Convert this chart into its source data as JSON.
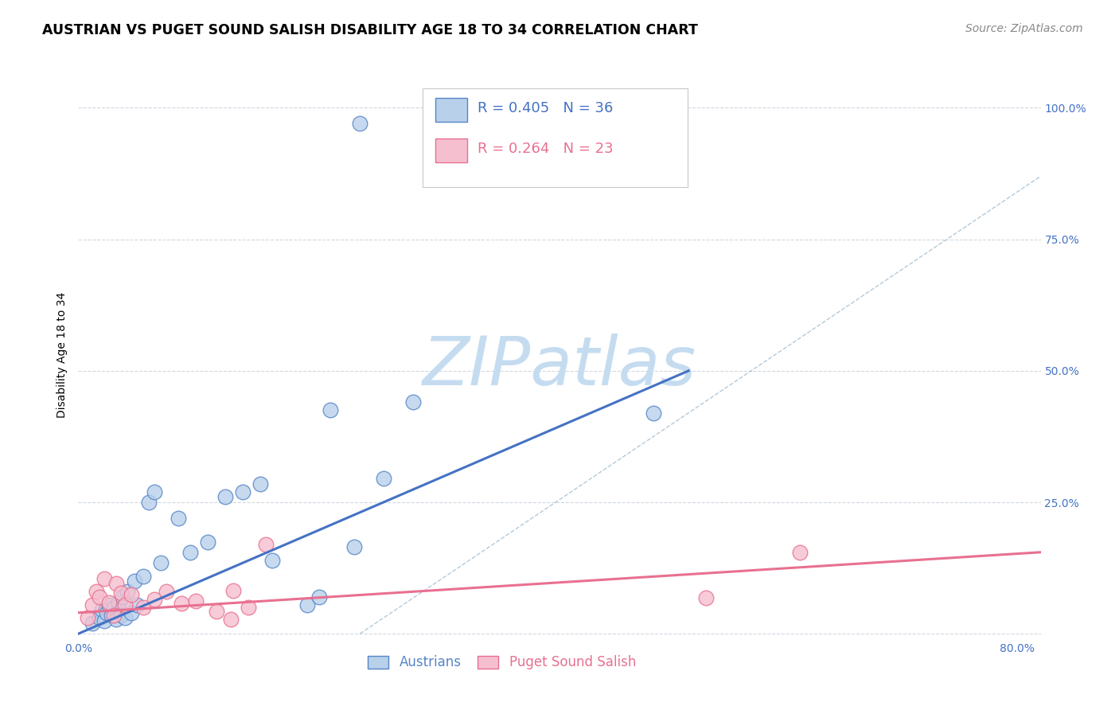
{
  "title": "AUSTRIAN VS PUGET SOUND SALISH DISABILITY AGE 18 TO 34 CORRELATION CHART",
  "source": "Source: ZipAtlas.com",
  "ylabel": "Disability Age 18 to 34",
  "xlim": [
    0.0,
    0.82
  ],
  "ylim": [
    -0.01,
    1.07
  ],
  "xticks": [
    0.0,
    0.2,
    0.4,
    0.6,
    0.8
  ],
  "xticklabels": [
    "0.0%",
    "",
    "",
    "",
    "80.0%"
  ],
  "yticks": [
    0.0,
    0.25,
    0.5,
    0.75,
    1.0
  ],
  "right_yticklabels": [
    "",
    "25.0%",
    "50.0%",
    "75.0%",
    "100.0%"
  ],
  "blue_R": 0.405,
  "blue_N": 36,
  "pink_R": 0.264,
  "pink_N": 23,
  "blue_face_color": "#b8d0ea",
  "blue_edge_color": "#5585c8",
  "pink_face_color": "#f5bfcf",
  "pink_edge_color": "#e87090",
  "blue_line_color": "#4472c4",
  "pink_line_color": "#e87090",
  "dashed_line_color": "#a0bcd0",
  "watermark": "ZIPatlas",
  "watermark_color": "#c5dcf0",
  "grid_color": "#d0d8e0",
  "tick_color": "#4472c4",
  "background": "#ffffff",
  "blue_points_x": [
    0.012,
    0.018,
    0.02,
    0.022,
    0.024,
    0.026,
    0.028,
    0.03,
    0.032,
    0.034,
    0.036,
    0.038,
    0.04,
    0.042,
    0.045,
    0.048,
    0.05,
    0.055,
    0.06,
    0.065,
    0.07,
    0.085,
    0.095,
    0.11,
    0.125,
    0.14,
    0.155,
    0.165,
    0.195,
    0.205,
    0.215,
    0.235,
    0.26,
    0.285,
    0.49,
    0.24
  ],
  "blue_points_y": [
    0.02,
    0.03,
    0.045,
    0.025,
    0.04,
    0.055,
    0.035,
    0.05,
    0.028,
    0.06,
    0.035,
    0.07,
    0.03,
    0.08,
    0.04,
    0.1,
    0.055,
    0.11,
    0.25,
    0.27,
    0.135,
    0.22,
    0.155,
    0.175,
    0.26,
    0.27,
    0.285,
    0.14,
    0.055,
    0.07,
    0.425,
    0.165,
    0.295,
    0.44,
    0.42,
    0.97
  ],
  "pink_points_x": [
    0.008,
    0.012,
    0.015,
    0.018,
    0.022,
    0.026,
    0.03,
    0.032,
    0.036,
    0.04,
    0.045,
    0.055,
    0.065,
    0.075,
    0.088,
    0.1,
    0.118,
    0.132,
    0.145,
    0.16,
    0.535,
    0.615,
    0.13
  ],
  "pink_points_y": [
    0.03,
    0.055,
    0.08,
    0.07,
    0.105,
    0.06,
    0.035,
    0.095,
    0.078,
    0.055,
    0.075,
    0.05,
    0.065,
    0.08,
    0.058,
    0.062,
    0.042,
    0.082,
    0.05,
    0.17,
    0.068,
    0.155,
    0.028
  ],
  "blue_trend_x": [
    0.0,
    0.52
  ],
  "blue_trend_y": [
    0.0,
    0.5
  ],
  "pink_trend_x": [
    0.0,
    0.82
  ],
  "pink_trend_y": [
    0.04,
    0.155
  ],
  "diag_line_x": [
    0.24,
    0.82
  ],
  "diag_line_y": [
    0.0,
    0.87
  ],
  "title_fontsize": 12.5,
  "source_fontsize": 10,
  "tick_fontsize": 10,
  "ylabel_fontsize": 10,
  "legend_fontsize": 13,
  "scatter_size": 180
}
